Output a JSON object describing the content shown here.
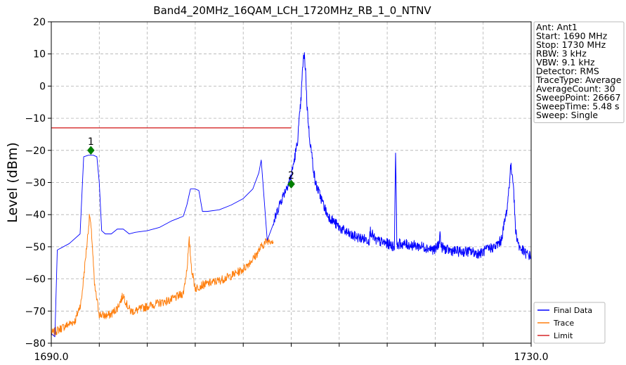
{
  "chart_data": {
    "type": "line",
    "title": "Band4_20MHz_16QAM_LCH_1720MHz_RB_1_0_NTNV",
    "xlabel": "",
    "ylabel": "Level (dBm)",
    "xlim": [
      1690.0,
      1730.0
    ],
    "ylim": [
      -80,
      20
    ],
    "x_tick_labels": [
      "1690.0",
      "1730.0"
    ],
    "x_ticks": [
      1690,
      1694,
      1698,
      1702,
      1706,
      1710,
      1714,
      1718,
      1722,
      1726,
      1730
    ],
    "y_ticks": [
      20,
      10,
      0,
      -10,
      -20,
      -30,
      -40,
      -50,
      -60,
      -70,
      -80
    ],
    "grid": true,
    "legend_position": "bottom-right",
    "info_box_position": "top-right",
    "info_lines": [
      "Ant: Ant1",
      "Start: 1690 MHz",
      "Stop: 1730 MHz",
      "RBW: 3 kHz",
      "VBW: 9.1 kHz",
      "Detector: RMS",
      "TraceType: Average",
      "AverageCount: 30",
      "SweepPoint: 26667",
      "SweepTime: 5.48 s",
      "Sweep: Single"
    ],
    "series": [
      {
        "name": "Final Data",
        "color": "#0000ff",
        "x": [
          1690.0,
          1690.3,
          1690.5,
          1691.5,
          1692.4,
          1692.7,
          1693.1,
          1693.5,
          1693.8,
          1694.0,
          1694.2,
          1694.5,
          1695.0,
          1695.5,
          1696.0,
          1696.5,
          1697.0,
          1698.0,
          1699.0,
          1700.0,
          1701.0,
          1701.3,
          1701.6,
          1702.0,
          1702.3,
          1702.6,
          1703.0,
          1704.0,
          1705.0,
          1706.0,
          1706.8,
          1707.3,
          1707.5,
          1708.0,
          1708.5,
          1709.0,
          1710.0,
          1710.5,
          1710.8,
          1711.0,
          1711.1,
          1711.2,
          1711.3,
          1711.5,
          1712.0,
          1713.0,
          1714.0,
          1715.0,
          1716.0,
          1716.5,
          1716.6,
          1717.0,
          1718.0,
          1718.6,
          1718.7,
          1718.8,
          1718.9,
          1719.0,
          1720.0,
          1721.0,
          1722.0,
          1722.3,
          1722.4,
          1722.5,
          1723.0,
          1724.0,
          1725.0,
          1725.5,
          1725.8,
          1726.0,
          1726.5,
          1727.0,
          1727.5,
          1728.0,
          1728.3,
          1728.5,
          1728.7,
          1729.0,
          1729.5,
          1730.0
        ],
        "y": [
          -77,
          -78,
          -51,
          -49,
          -46,
          -22,
          -21.5,
          -21.5,
          -22,
          -30,
          -45,
          -46,
          -46,
          -44.5,
          -44.5,
          -46,
          -45.5,
          -45,
          -44,
          -42,
          -40.5,
          -37,
          -32,
          -32,
          -32.5,
          -39,
          -39,
          -38.5,
          -37,
          -35,
          -32,
          -27,
          -23,
          -48,
          -43,
          -37,
          -28,
          -18,
          -5,
          8.5,
          9,
          5,
          -5,
          -15,
          -30,
          -40,
          -44,
          -46.5,
          -47.5,
          -48,
          -45,
          -48,
          -49,
          -50,
          -19.5,
          -48,
          -50,
          -49,
          -49.5,
          -50,
          -51,
          -49,
          -46,
          -50,
          -51,
          -51.5,
          -51.5,
          -52,
          -52,
          -51.5,
          -50.5,
          -50,
          -48,
          -38,
          -25,
          -29,
          -45,
          -50,
          -52,
          -53
        ]
      },
      {
        "name": "Trace",
        "color": "#ff7f0e",
        "x": [
          1690.0,
          1690.5,
          1691.0,
          1692.0,
          1692.5,
          1693.0,
          1693.2,
          1693.4,
          1693.6,
          1694.0,
          1694.5,
          1695.0,
          1695.5,
          1696.0,
          1696.3,
          1696.6,
          1697.0,
          1698.0,
          1699.0,
          1700.0,
          1701.0,
          1701.3,
          1701.5,
          1701.7,
          1702.0,
          1702.5,
          1703.0,
          1704.0,
          1705.0,
          1706.0,
          1707.0,
          1707.5,
          1708.0,
          1708.5
        ],
        "y": [
          -77,
          -76,
          -75,
          -73,
          -67,
          -48,
          -40,
          -48,
          -62,
          -71,
          -71.5,
          -71,
          -69,
          -65,
          -68,
          -70,
          -70,
          -68.5,
          -67.5,
          -66.5,
          -64.5,
          -57,
          -48,
          -57,
          -63,
          -62,
          -61.5,
          -60.5,
          -59,
          -57,
          -53,
          -50,
          -48,
          -48
        ]
      },
      {
        "name": "Limit",
        "color": "#d62728",
        "x": [
          1690.0,
          1710.0
        ],
        "y": [
          -13,
          -13
        ]
      }
    ],
    "markers": [
      {
        "label": "1",
        "x": 1693.3,
        "y": -20
      },
      {
        "label": "2",
        "x": 1710.0,
        "y": -30.5
      }
    ]
  }
}
